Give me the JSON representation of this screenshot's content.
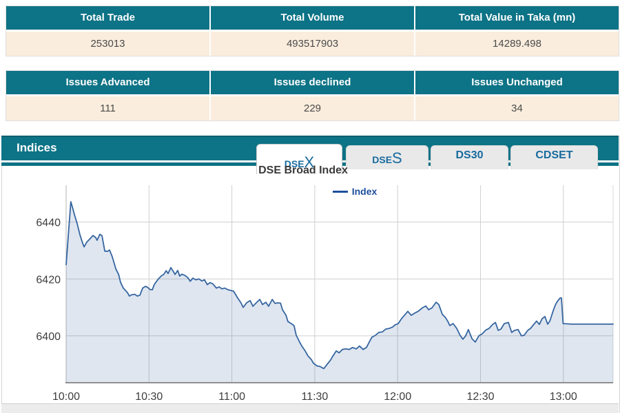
{
  "summary_tables": [
    {
      "headers": [
        "Total Trade",
        "Total Volume",
        "Total Value in Taka (mn)"
      ],
      "values": [
        "253013",
        "493517903",
        "14289.498"
      ]
    },
    {
      "headers": [
        "Issues Advanced",
        "Issues declined",
        "Issues Unchanged"
      ],
      "values": [
        "111",
        "229",
        "34"
      ]
    }
  ],
  "indices": {
    "title": "Indices",
    "tabs": [
      {
        "label_prefix": "DSE",
        "label_suffix": "X",
        "active": true
      },
      {
        "label_prefix": "DSE",
        "label_suffix": "S",
        "active": false
      },
      {
        "label_prefix": "DS30",
        "label_suffix": "",
        "active": false
      },
      {
        "label_prefix": "CDSET",
        "label_suffix": "",
        "active": false
      }
    ]
  },
  "colors": {
    "teal_header": "#0d7386",
    "cream_row": "#faeddd",
    "tab_text": "#176a9e",
    "chart_line": "#3565a0",
    "chart_fill_rgba": "rgba(53,101,160,0.16)",
    "legend_text": "#1d4e9c",
    "grid": "#cfcfcf"
  },
  "chart_data": {
    "type": "area",
    "title": "DSE Broad Index",
    "xlabel": "",
    "ylabel": "",
    "legend": [
      "Index"
    ],
    "legend_position": "top",
    "grid": true,
    "x_ticks": [
      "10:00",
      "10:30",
      "11:00",
      "11:30",
      "12:00",
      "12:30",
      "13:00"
    ],
    "x_tick_minutes": [
      0,
      30,
      60,
      90,
      120,
      150,
      180
    ],
    "x_range_minutes": [
      0,
      198
    ],
    "y_ticks": [
      6400,
      6420,
      6440
    ],
    "ylim": [
      6383.5,
      6453
    ],
    "series": [
      {
        "name": "Index",
        "points": [
          [
            0,
            6425
          ],
          [
            1.7,
            6447.2
          ],
          [
            2.5,
            6444.5
          ],
          [
            3.2,
            6442
          ],
          [
            4,
            6439.5
          ],
          [
            5,
            6435.5
          ],
          [
            6,
            6432.5
          ],
          [
            6.5,
            6431.3
          ],
          [
            7.5,
            6433
          ],
          [
            8.7,
            6434.2
          ],
          [
            9.7,
            6435.3
          ],
          [
            10.7,
            6434.6
          ],
          [
            11.2,
            6433.6
          ],
          [
            12.2,
            6435.7
          ],
          [
            13,
            6435.2
          ],
          [
            14,
            6429.8
          ],
          [
            15,
            6429.7
          ],
          [
            15.7,
            6430.2
          ],
          [
            16.7,
            6427.8
          ],
          [
            18,
            6423.5
          ],
          [
            19,
            6421.6
          ],
          [
            19.7,
            6418.8
          ],
          [
            20.7,
            6416.8
          ],
          [
            22.2,
            6415.2
          ],
          [
            22.9,
            6414
          ],
          [
            23.9,
            6414.5
          ],
          [
            24.9,
            6414.6
          ],
          [
            25.7,
            6414
          ],
          [
            26.7,
            6414.3
          ],
          [
            27.7,
            6416.8
          ],
          [
            28.7,
            6417.4
          ],
          [
            29.4,
            6417.1
          ],
          [
            30.4,
            6416.3
          ],
          [
            31.2,
            6416.2
          ],
          [
            31.9,
            6418
          ],
          [
            33.2,
            6419.8
          ],
          [
            34.4,
            6421
          ],
          [
            35.4,
            6421.7
          ],
          [
            36.2,
            6422.9
          ],
          [
            36.9,
            6421.9
          ],
          [
            37.9,
            6424
          ],
          [
            38.7,
            6422.8
          ],
          [
            39.4,
            6421.6
          ],
          [
            40.4,
            6423
          ],
          [
            41.1,
            6421
          ],
          [
            41.9,
            6421.7
          ],
          [
            43.1,
            6421.2
          ],
          [
            44.1,
            6420.4
          ],
          [
            44.9,
            6419.2
          ],
          [
            45.9,
            6420.3
          ],
          [
            46.9,
            6419.7
          ],
          [
            48.1,
            6420
          ],
          [
            49.1,
            6419.3
          ],
          [
            50.1,
            6419.7
          ],
          [
            51.1,
            6418
          ],
          [
            52.1,
            6418.7
          ],
          [
            53.1,
            6418.3
          ],
          [
            54.4,
            6416.8
          ],
          [
            55.4,
            6417.2
          ],
          [
            56.4,
            6416.5
          ],
          [
            57.4,
            6416.8
          ],
          [
            58.4,
            6416.3
          ],
          [
            59.4,
            6416
          ],
          [
            60.6,
            6415.7
          ],
          [
            62.1,
            6413.3
          ],
          [
            63.3,
            6411.6
          ],
          [
            64.1,
            6410
          ],
          [
            65.3,
            6411.6
          ],
          [
            66.6,
            6412.4
          ],
          [
            67.6,
            6410.4
          ],
          [
            68.8,
            6411.6
          ],
          [
            70.1,
            6412.8
          ],
          [
            71.1,
            6411
          ],
          [
            72.3,
            6411.8
          ],
          [
            73.3,
            6410.4
          ],
          [
            74.6,
            6412.8
          ],
          [
            75.6,
            6411.4
          ],
          [
            76.6,
            6411.6
          ],
          [
            77.6,
            6411.5
          ],
          [
            78.3,
            6409.2
          ],
          [
            79.6,
            6407.2
          ],
          [
            80.3,
            6405
          ],
          [
            81.5,
            6404.3
          ],
          [
            82.5,
            6403.6
          ],
          [
            83.3,
            6400.2
          ],
          [
            84.5,
            6397.8
          ],
          [
            85.3,
            6396.4
          ],
          [
            86.5,
            6394.7
          ],
          [
            87.5,
            6393
          ],
          [
            88.8,
            6391.6
          ],
          [
            89.5,
            6390.4
          ],
          [
            90.8,
            6389.4
          ],
          [
            92,
            6389.2
          ],
          [
            92.8,
            6388.7
          ],
          [
            93.3,
            6388.5
          ],
          [
            94.5,
            6390
          ],
          [
            95.8,
            6391.6
          ],
          [
            96.5,
            6392.8
          ],
          [
            97.8,
            6394.7
          ],
          [
            98.8,
            6394
          ],
          [
            100,
            6395.2
          ],
          [
            101.2,
            6395.4
          ],
          [
            102.5,
            6395.2
          ],
          [
            103.7,
            6395.9
          ],
          [
            105,
            6395.4
          ],
          [
            106.2,
            6396.4
          ],
          [
            107.5,
            6395.2
          ],
          [
            108.7,
            6395.9
          ],
          [
            110,
            6398.3
          ],
          [
            110.7,
            6399.5
          ],
          [
            112,
            6400.2
          ],
          [
            113.2,
            6401.2
          ],
          [
            114.5,
            6401.4
          ],
          [
            115.7,
            6402.4
          ],
          [
            117,
            6402.6
          ],
          [
            118.2,
            6403.1
          ],
          [
            119,
            6403.8
          ],
          [
            120.2,
            6404.3
          ],
          [
            121.4,
            6406
          ],
          [
            122.7,
            6407.5
          ],
          [
            123.7,
            6408.6
          ],
          [
            124.9,
            6407.2
          ],
          [
            126.2,
            6408
          ],
          [
            127.4,
            6408.6
          ],
          [
            128.9,
            6409.8
          ],
          [
            130.2,
            6410.5
          ],
          [
            131.2,
            6409.2
          ],
          [
            132.4,
            6409.8
          ],
          [
            133.9,
            6411.8
          ],
          [
            134.9,
            6411
          ],
          [
            136.2,
            6407.5
          ],
          [
            137.4,
            6406.3
          ],
          [
            138.2,
            6405
          ],
          [
            138.9,
            6403.6
          ],
          [
            140.1,
            6404.3
          ],
          [
            141.4,
            6402.6
          ],
          [
            142.6,
            6400.2
          ],
          [
            143.6,
            6398.8
          ],
          [
            144.6,
            6400
          ],
          [
            145.6,
            6402.2
          ],
          [
            146.9,
            6399
          ],
          [
            148.1,
            6397.8
          ],
          [
            149.4,
            6400
          ],
          [
            150.6,
            6400.7
          ],
          [
            151.9,
            6402
          ],
          [
            153.1,
            6402.6
          ],
          [
            154.4,
            6404
          ],
          [
            155.4,
            6404.7
          ],
          [
            156.4,
            6401.9
          ],
          [
            157.4,
            6402.4
          ],
          [
            158.6,
            6404.3
          ],
          [
            160.1,
            6404.7
          ],
          [
            161.3,
            6401.2
          ],
          [
            162.3,
            6401.9
          ],
          [
            163.6,
            6402.2
          ],
          [
            164.8,
            6400
          ],
          [
            165.8,
            6400.2
          ],
          [
            167.1,
            6401.9
          ],
          [
            168.1,
            6402.6
          ],
          [
            169.1,
            6403.8
          ],
          [
            170.3,
            6405.2
          ],
          [
            171.3,
            6404
          ],
          [
            172.3,
            6406
          ],
          [
            173.3,
            6406.8
          ],
          [
            174.3,
            6404.1
          ],
          [
            175.1,
            6405.2
          ],
          [
            176.3,
            6408.8
          ],
          [
            177.1,
            6410.9
          ],
          [
            177.8,
            6412.1
          ],
          [
            178.8,
            6413.3
          ],
          [
            179.3,
            6413.3
          ],
          [
            179.9,
            6404.3
          ],
          [
            183,
            6404.1
          ],
          [
            198,
            6404.1
          ]
        ]
      }
    ]
  }
}
